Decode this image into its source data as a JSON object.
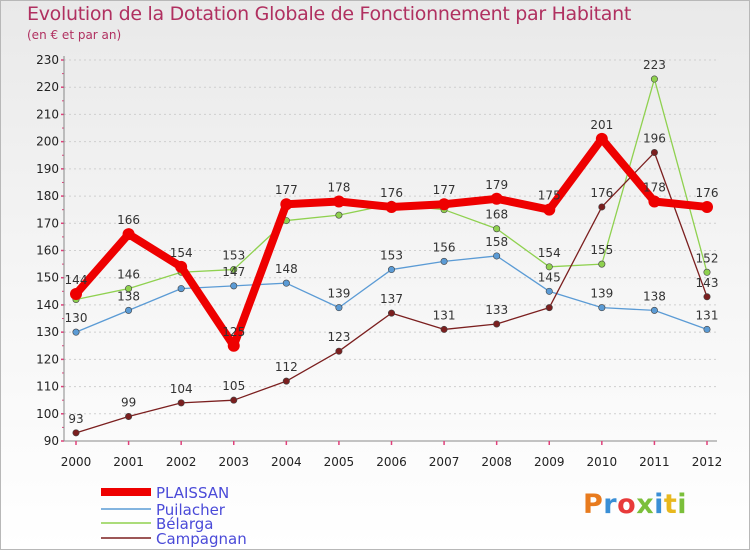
{
  "title": "Evolution de la Dotation Globale de Fonctionnement par Habitant",
  "subtitle": "(en € et par an)",
  "logo": {
    "text": "Proxiti",
    "colors": [
      "#e87b1e",
      "#3a8fd6",
      "#e83a3a",
      "#7bbf3a",
      "#3a8fd6",
      "#e8b81e",
      "#7bbf3a"
    ]
  },
  "chart_data": {
    "type": "line",
    "title": "Evolution de la Dotation Globale de Fonctionnement par Habitant",
    "subtitle": "(en € et par an)",
    "x": [
      "2000",
      "2001",
      "2002",
      "2003",
      "2004",
      "2005",
      "2006",
      "2007",
      "2008",
      "2009",
      "2010",
      "2011",
      "2012"
    ],
    "ylim": [
      90,
      230
    ],
    "yticks": [
      90,
      100,
      110,
      120,
      130,
      140,
      150,
      160,
      170,
      180,
      190,
      200,
      210,
      220,
      230
    ],
    "grid": "horizontal",
    "legend_position": "bottom-left",
    "series": [
      {
        "name": "Puilacher",
        "color": "#5b9bd5",
        "values": [
          130,
          138,
          146,
          147,
          148,
          139,
          153,
          156,
          158,
          145,
          139,
          138,
          131
        ]
      },
      {
        "name": "Bélarga",
        "color": "#8fd14f",
        "values": [
          142,
          146,
          152,
          153,
          171,
          173,
          177,
          175,
          168,
          154,
          155,
          223,
          152
        ]
      },
      {
        "name": "Campagnan",
        "color": "#7b1f1f",
        "values": [
          93,
          99,
          104,
          105,
          112,
          123,
          137,
          131,
          133,
          139,
          176,
          196,
          143
        ]
      },
      {
        "name": "PLAISSAN",
        "color": "#ee0000",
        "values": [
          144,
          166,
          154,
          125,
          177,
          178,
          176,
          177,
          179,
          175,
          201,
          178,
          176
        ]
      }
    ],
    "labels": {
      "Puilacher": [
        "130",
        "138",
        "",
        "147",
        "148",
        "139",
        "153",
        "156",
        "158",
        "145",
        "139",
        "138",
        "131"
      ],
      "Bélarga": [
        "",
        "146",
        "",
        "153",
        "",
        "",
        "",
        "",
        "168",
        "154",
        "155",
        "223",
        "152"
      ],
      "Campagnan": [
        "93",
        "99",
        "104",
        "105",
        "112",
        "123",
        "137",
        "131",
        "133",
        "",
        "176",
        "196",
        "143"
      ],
      "PLAISSAN": [
        "144",
        "166",
        "154",
        "125",
        "177",
        "178",
        "176",
        "177",
        "179",
        "175",
        "201",
        "178",
        "176"
      ]
    },
    "legend_order": [
      "PLAISSAN",
      "Puilacher",
      "Bélarga",
      "Campagnan"
    ]
  }
}
